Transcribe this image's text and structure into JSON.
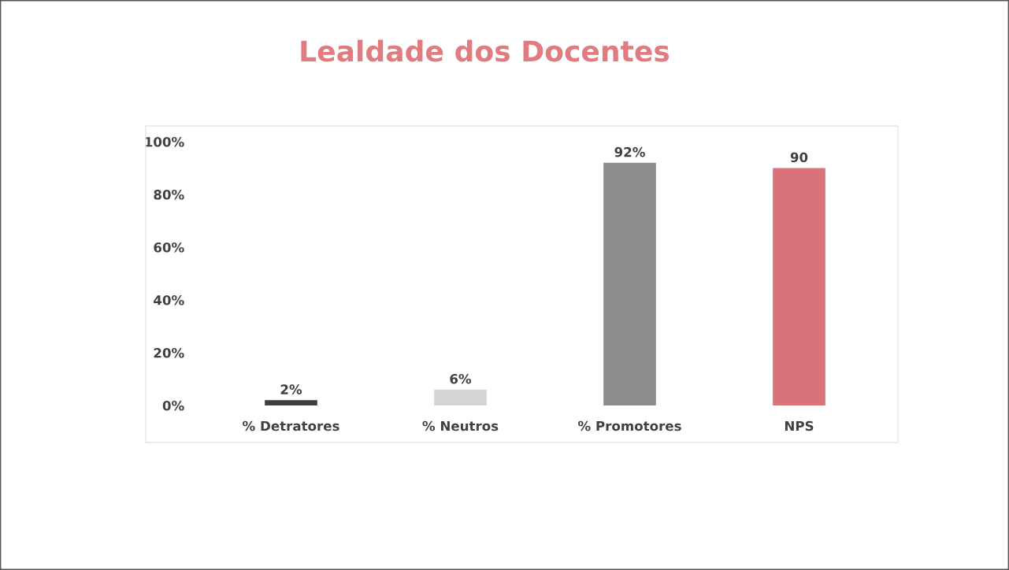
{
  "chart_data": {
    "type": "bar",
    "title": "Lealdade dos Docentes",
    "categories": [
      "% Detratores",
      "% Neutros",
      "% Promotores",
      "NPS"
    ],
    "values": [
      2,
      6,
      92,
      90
    ],
    "colors": [
      "#3f3f3f",
      "#d4d4d4",
      "#8c8c8c",
      "#d9737a"
    ],
    "value_labels": [
      "2%",
      "6%",
      "92%",
      "90"
    ],
    "ylim": [
      0,
      100
    ],
    "yticks": [
      {
        "value": 0,
        "label": "0%"
      },
      {
        "value": 20,
        "label": "20%"
      },
      {
        "value": 40,
        "label": "40%"
      },
      {
        "value": 60,
        "label": "60%"
      },
      {
        "value": 80,
        "label": "80%"
      },
      {
        "value": 100,
        "label": "100%"
      }
    ],
    "grid": false
  }
}
